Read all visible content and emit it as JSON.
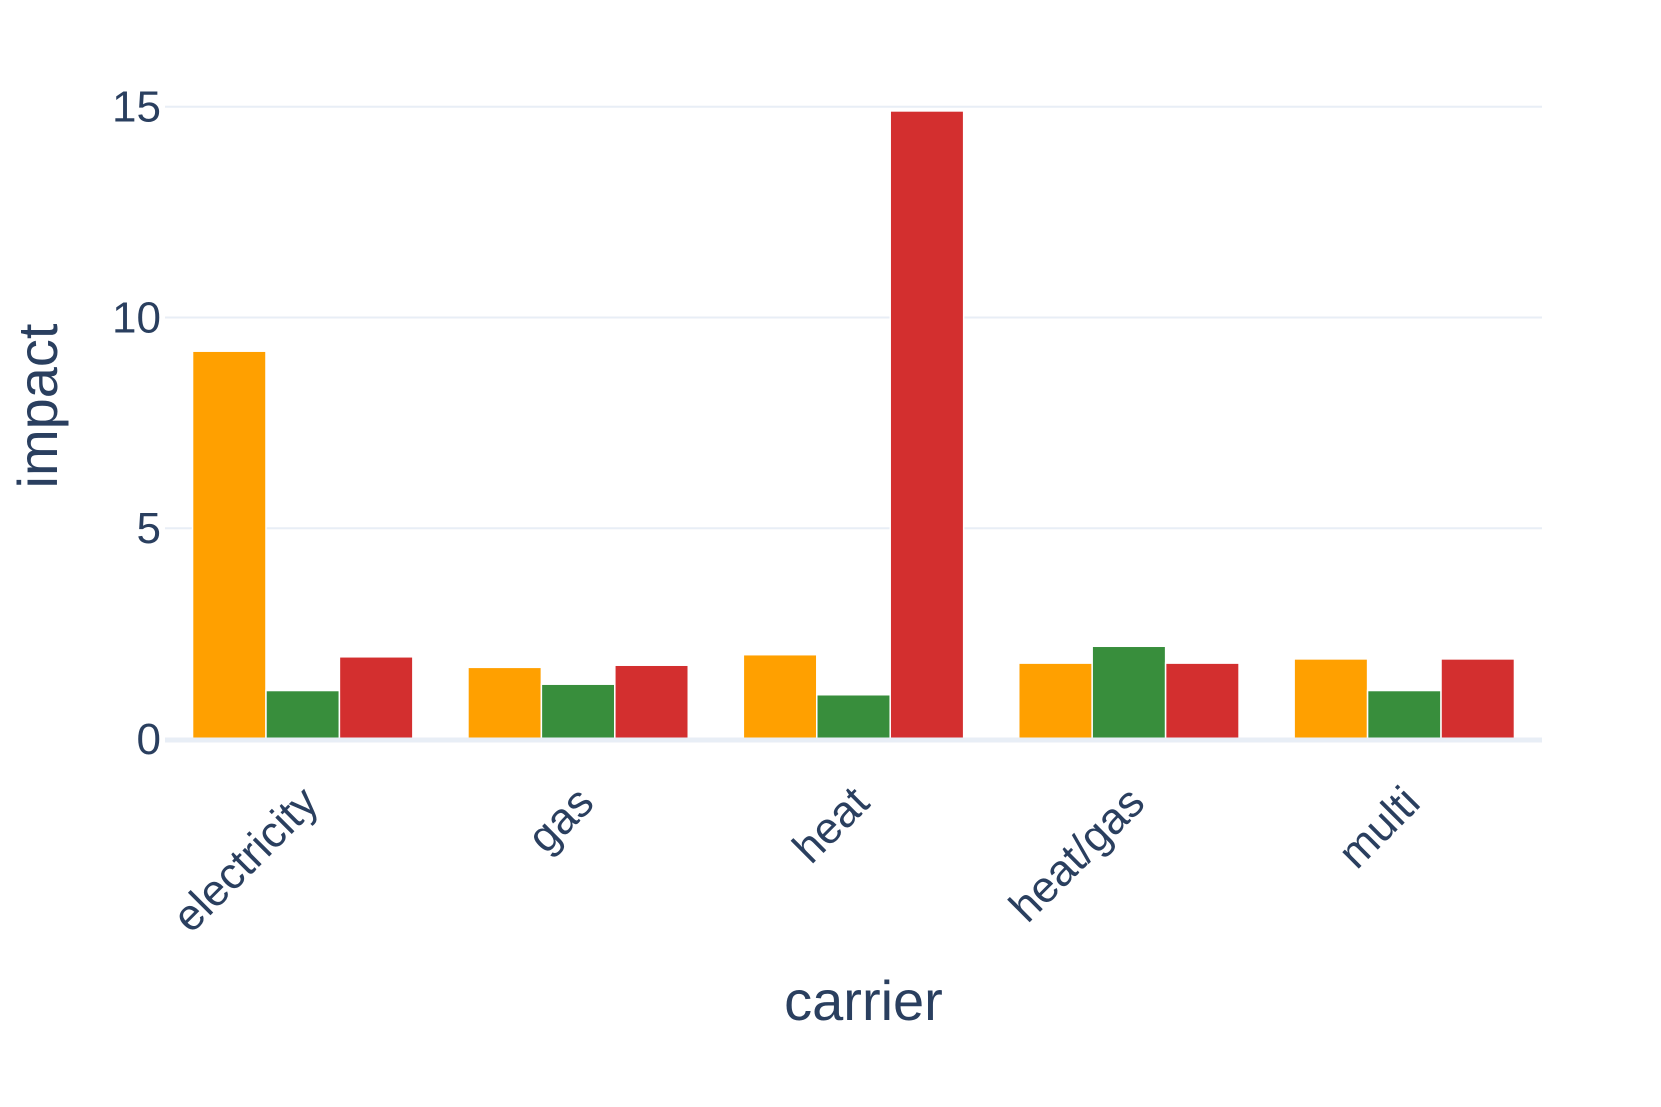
{
  "chart_data": {
    "type": "bar",
    "categories": [
      "electricity",
      "gas",
      "heat",
      "heat/gas",
      "multi"
    ],
    "series": [
      {
        "color": "#ffa000",
        "values": [
          9.2,
          1.7,
          2.0,
          1.8,
          1.9
        ]
      },
      {
        "color": "#388e3c",
        "values": [
          1.15,
          1.3,
          1.05,
          2.2,
          1.15
        ]
      },
      {
        "color": "#d32f2f",
        "values": [
          1.95,
          1.75,
          14.9,
          1.8,
          1.9
        ]
      }
    ],
    "xlabel": "carrier",
    "ylabel": "impact",
    "ylim": [
      0,
      15.8
    ],
    "yticks": [
      0,
      5,
      10,
      15
    ],
    "ytick_labels": [
      "0",
      "5",
      "10",
      "15"
    ],
    "xtick_rotation": -45,
    "grid": true,
    "barmode": "group"
  }
}
